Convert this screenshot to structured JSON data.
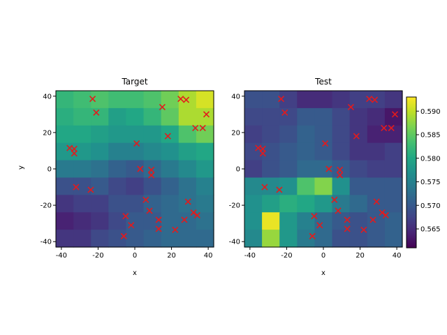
{
  "chart_data": [
    {
      "type": "heatmap",
      "title": "Target",
      "xlabel": "x",
      "ylabel": "y",
      "xlim": [
        -43,
        43
      ],
      "ylim": [
        -43,
        43
      ],
      "xticks": [
        -40,
        -20,
        0,
        20,
        40
      ],
      "yticks": [
        -40,
        -20,
        0,
        20,
        40
      ],
      "grid": {
        "rows": 9,
        "cols": 9,
        "values": [
          [
            0.582,
            0.583,
            0.584,
            0.583,
            0.583,
            0.584,
            0.586,
            0.589,
            0.591
          ],
          [
            0.581,
            0.582,
            0.582,
            0.579,
            0.58,
            0.582,
            0.585,
            0.589,
            0.589
          ],
          [
            0.58,
            0.58,
            0.579,
            0.578,
            0.578,
            0.578,
            0.58,
            0.584,
            0.586
          ],
          [
            0.578,
            0.578,
            0.577,
            0.575,
            0.575,
            0.576,
            0.577,
            0.579,
            0.58
          ],
          [
            0.574,
            0.574,
            0.573,
            0.571,
            0.57,
            0.572,
            0.574,
            0.576,
            0.578
          ],
          [
            0.569,
            0.569,
            0.57,
            0.568,
            0.567,
            0.569,
            0.571,
            0.573,
            0.575
          ],
          [
            0.566,
            0.567,
            0.567,
            0.569,
            0.569,
            0.571,
            0.572,
            0.573,
            0.574
          ],
          [
            0.564,
            0.565,
            0.566,
            0.568,
            0.57,
            0.57,
            0.572,
            0.572,
            0.573
          ],
          [
            0.566,
            0.566,
            0.568,
            0.569,
            0.57,
            0.571,
            0.572,
            0.572,
            0.572
          ]
        ]
      },
      "markers": {
        "symbol": "x",
        "color": "#e41a1c",
        "points": [
          [
            -35.5,
            11.5
          ],
          [
            -33,
            11
          ],
          [
            -33,
            8.5
          ],
          [
            -23,
            38.5
          ],
          [
            -21,
            31
          ],
          [
            -32,
            -10
          ],
          [
            -24,
            -11.5
          ],
          [
            -6,
            -37
          ],
          [
            -5,
            -26
          ],
          [
            -2,
            -31
          ],
          [
            1,
            14
          ],
          [
            3,
            0
          ],
          [
            6,
            -17
          ],
          [
            8,
            -23
          ],
          [
            9,
            -0.5
          ],
          [
            9,
            -3.5
          ],
          [
            13,
            -28
          ],
          [
            13,
            -33
          ],
          [
            15,
            34
          ],
          [
            18,
            18
          ],
          [
            22,
            -33.5
          ],
          [
            25,
            38.5
          ],
          [
            27,
            -28
          ],
          [
            28,
            38
          ],
          [
            29,
            -18
          ],
          [
            32,
            -24
          ],
          [
            33,
            22.5
          ],
          [
            34,
            -25.5
          ],
          [
            37,
            22.5
          ],
          [
            39,
            30
          ]
        ]
      }
    },
    {
      "type": "heatmap",
      "title": "Test",
      "xlabel": "x",
      "ylabel": "",
      "xlim": [
        -43,
        43
      ],
      "ylim": [
        -43,
        43
      ],
      "xticks": [
        -40,
        -20,
        0,
        20,
        40
      ],
      "yticks": [
        -40,
        -20,
        0,
        20,
        40
      ],
      "grid": {
        "rows": 9,
        "cols": 9,
        "values": [
          [
            0.569,
            0.569,
            0.567,
            0.565,
            0.565,
            0.566,
            0.567,
            0.567,
            0.566
          ],
          [
            0.568,
            0.568,
            0.568,
            0.57,
            0.57,
            0.568,
            0.566,
            0.565,
            0.563
          ],
          [
            0.567,
            0.568,
            0.569,
            0.571,
            0.57,
            0.568,
            0.566,
            0.564,
            0.564
          ],
          [
            0.568,
            0.569,
            0.57,
            0.571,
            0.57,
            0.568,
            0.566,
            0.566,
            0.567
          ],
          [
            0.567,
            0.569,
            0.57,
            0.572,
            0.572,
            0.57,
            0.568,
            0.567,
            0.567
          ],
          [
            0.576,
            0.576,
            0.577,
            0.584,
            0.587,
            0.577,
            0.57,
            0.57,
            0.57
          ],
          [
            0.577,
            0.579,
            0.581,
            0.58,
            0.578,
            0.574,
            0.572,
            0.57,
            0.57
          ],
          [
            0.577,
            0.592,
            0.578,
            0.575,
            0.572,
            0.57,
            0.569,
            0.57,
            0.571
          ],
          [
            0.576,
            0.588,
            0.578,
            0.574,
            0.572,
            0.569,
            0.569,
            0.57,
            0.571
          ]
        ]
      },
      "markers": {
        "symbol": "x",
        "color": "#e41a1c",
        "points": [
          [
            -35.5,
            11.5
          ],
          [
            -33,
            11
          ],
          [
            -33,
            8.5
          ],
          [
            -23,
            38.5
          ],
          [
            -21,
            31
          ],
          [
            -32,
            -10
          ],
          [
            -24,
            -11.5
          ],
          [
            -6,
            -37
          ],
          [
            -5,
            -26
          ],
          [
            -2,
            -31
          ],
          [
            1,
            14
          ],
          [
            3,
            0
          ],
          [
            6,
            -17
          ],
          [
            8,
            -23
          ],
          [
            9,
            -0.5
          ],
          [
            9,
            -3.5
          ],
          [
            13,
            -28
          ],
          [
            13,
            -33
          ],
          [
            15,
            34
          ],
          [
            18,
            18
          ],
          [
            22,
            -33.5
          ],
          [
            25,
            38.5
          ],
          [
            27,
            -28
          ],
          [
            28,
            38
          ],
          [
            29,
            -18
          ],
          [
            32,
            -24
          ],
          [
            33,
            22.5
          ],
          [
            34,
            -25.5
          ],
          [
            37,
            22.5
          ],
          [
            39,
            30
          ]
        ]
      }
    }
  ],
  "colorbar": {
    "colormap": "viridis",
    "range": [
      0.561,
      0.593
    ],
    "ticks": [
      0.565,
      0.57,
      0.575,
      0.58,
      0.585,
      0.59
    ],
    "tick_labels": [
      "0.565",
      "0.570",
      "0.575",
      "0.580",
      "0.585",
      "0.590"
    ]
  }
}
